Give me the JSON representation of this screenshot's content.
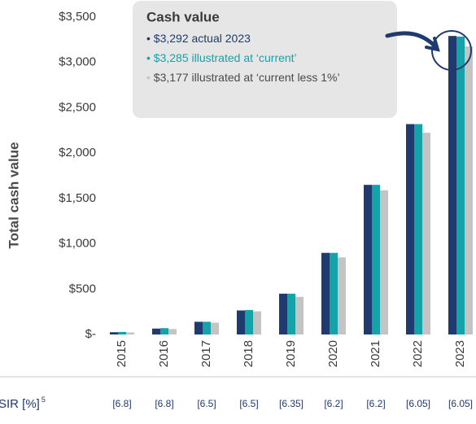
{
  "chart_data": {
    "type": "bar",
    "y_axis_label": "Total cash value",
    "categories": [
      "2015",
      "2016",
      "2017",
      "2018",
      "2019",
      "2020",
      "2021",
      "2022",
      "2023"
    ],
    "series": [
      {
        "color": "#1f3a6e",
        "values": [
          25,
          65,
          140,
          265,
          450,
          900,
          1650,
          2320,
          3292
        ]
      },
      {
        "color": "#13a3a8",
        "values": [
          28,
          70,
          140,
          270,
          450,
          900,
          1650,
          2320,
          3285
        ]
      },
      {
        "color": "#c4c4c4",
        "values": [
          22,
          60,
          130,
          255,
          415,
          850,
          1590,
          2225,
          3177
        ]
      }
    ],
    "ylim": [
      0,
      3500
    ],
    "yticks": [
      {
        "value": 0,
        "label": "$-"
      },
      {
        "value": 500,
        "label": "$500"
      },
      {
        "value": 1000,
        "label": "$1,000"
      },
      {
        "value": 1500,
        "label": "$1,500"
      },
      {
        "value": 2000,
        "label": "$2,000"
      },
      {
        "value": 2500,
        "label": "$2,500"
      },
      {
        "value": 3000,
        "label": "$3,000"
      },
      {
        "value": 3500,
        "label": "$3,500"
      }
    ],
    "annotation": {
      "title": "Cash value",
      "items": [
        "$3,292 actual 2023",
        "$3,285 illustrated at ‘current’",
        "$3,177 illustrated at ‘current less 1%’"
      ]
    },
    "sir": {
      "label": "SIR [%]",
      "superscript": "5",
      "values": [
        "[6.8]",
        "[6.8]",
        "[6.5]",
        "[6.5]",
        "[6.35]",
        "[6.2]",
        "[6.2]",
        "[6.05]",
        "[6.05]"
      ]
    }
  }
}
